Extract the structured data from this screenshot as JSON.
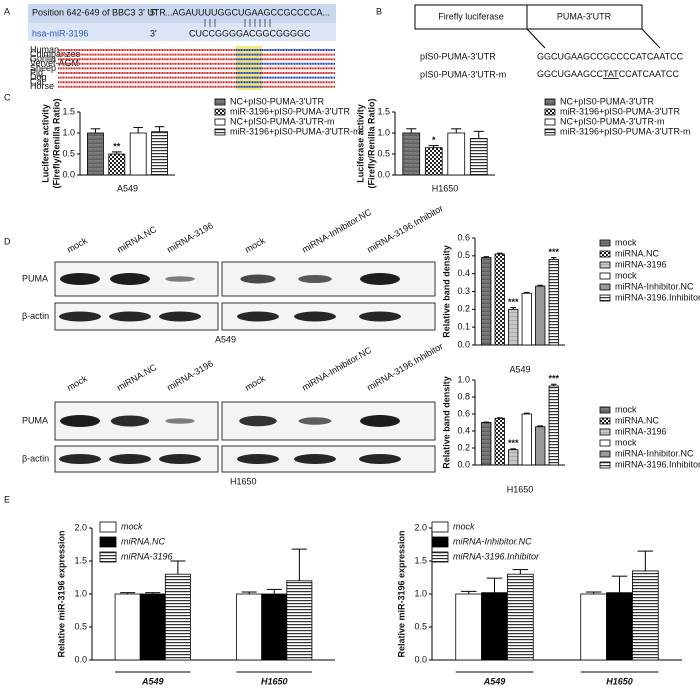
{
  "panel_labels": [
    "A",
    "B",
    "C",
    "D",
    "E"
  ],
  "panel_A": {
    "title": "Position 642-649 of BBC3 3' UTR",
    "utr_end": "5'",
    "utr_seq": "...AGAUUUUGGCUGAAGCCGCCCCA...",
    "mirna_name": "hsa-miR-3196",
    "mirna_end": "3'",
    "mirna_seq": "CUCCGGGGACGGCGGGGC",
    "species": [
      "Human",
      "Chimpanzee",
      "Gorilla",
      "Vervet-AGM",
      "Sheep",
      "Pig",
      "Dog",
      "Cat",
      "Horse"
    ]
  },
  "panel_B": {
    "box_left": "Firefly luciferase",
    "box_right": "PUMA-3'UTR",
    "constructs": [
      {
        "name": "pIS0-PUMA-3'UTR",
        "seq": "GGCUGAAGCCGCCCCATCAATCC"
      },
      {
        "name": "pIS0-PUMA-3'UTR-m",
        "seq_start": "GGCUGAAGCC",
        "seq_mut": "TAT",
        "seq_end": "CCATCAATCC"
      }
    ]
  },
  "panel_D_blots": [
    {
      "lanes": [
        "mock",
        "miRNA.NC",
        "miRNA-3196",
        "mock",
        "miRNA-Inhibitor.NC",
        "miRNA-3196.Inhibitor"
      ],
      "rows": [
        "PUMA",
        "β-actin"
      ],
      "cell_line": "A549"
    },
    {
      "lanes": [
        "mock",
        "miRNA.NC",
        "miRNA-3196",
        "mock",
        "miRNA-Inhibitor.NC",
        "miRNA-3196.Inhibitor"
      ],
      "rows": [
        "PUMA",
        "β-actin"
      ],
      "cell_line": "H1650"
    }
  ],
  "chart_data": [
    {
      "type": "bar",
      "ylabel": "Luciferase activity\n(Firefly/Renilla Ratio)",
      "xlabel": "A549",
      "ylim": [
        0,
        1.5
      ],
      "yticks": [
        {
          "value": 0,
          "label": "0.0"
        },
        0.5,
        {
          "value": 1,
          "label": "1.0"
        },
        1.5
      ],
      "series": [
        {
          "name": "NC+pIS0-PUMA-3'UTR",
          "fill": "gray",
          "values": [
            1.0
          ],
          "errors": [
            0.1
          ],
          "annotations": [
            null
          ]
        },
        {
          "name": "miR-3196+pIS0-PUMA-3'UTR",
          "fill": "checker",
          "values": [
            0.5
          ],
          "errors": [
            0.05
          ],
          "annotations": [
            "**"
          ]
        },
        {
          "name": "NC+pIS0-PUMA-3'UTR-m",
          "fill": "white",
          "values": [
            1.0
          ],
          "errors": [
            0.13
          ],
          "annotations": [
            null
          ]
        },
        {
          "name": "miR-3196+pIS0-PUMA-3'UTR-m",
          "fill": "hlines",
          "values": [
            1.03
          ],
          "errors": [
            0.12
          ],
          "annotations": [
            null
          ]
        }
      ]
    },
    {
      "type": "bar",
      "ylabel": "Luciferase activity\n(Firefly/Renilla Ratio)",
      "xlabel": "H1650",
      "ylim": [
        0,
        1.5
      ],
      "yticks": [
        {
          "value": 0,
          "label": "0.0"
        },
        0.5,
        {
          "value": 1,
          "label": "1.0"
        },
        1.5
      ],
      "series": [
        {
          "name": "NC+pIS0-PUMA-3'UTR",
          "fill": "gray",
          "values": [
            1.0
          ],
          "errors": [
            0.1
          ],
          "annotations": [
            null
          ]
        },
        {
          "name": "miR-3196+pIS0-PUMA-3'UTR",
          "fill": "checker",
          "values": [
            0.65
          ],
          "errors": [
            0.05
          ],
          "annotations": [
            "*"
          ]
        },
        {
          "name": "NC+pIS0-PUMA-3'UTR-m",
          "fill": "white",
          "values": [
            1.0
          ],
          "errors": [
            0.1
          ],
          "annotations": [
            null
          ]
        },
        {
          "name": "miR-3196+pIS0-PUMA-3'UTR-m",
          "fill": "hlines",
          "values": [
            0.87
          ],
          "errors": [
            0.17
          ],
          "annotations": [
            null
          ]
        }
      ]
    },
    {
      "type": "bar",
      "ylabel": "Relative band density",
      "title": "A549",
      "ylim": [
        0,
        0.6
      ],
      "yticks": [
        {
          "value": 0,
          "label": "0.0"
        },
        0.1,
        0.2,
        0.3,
        0.4,
        0.5,
        0.6
      ],
      "series": [
        {
          "name": "mock",
          "fill": "gray",
          "values": [
            0.49
          ],
          "errors": [
            0.005
          ],
          "annotations": [
            null
          ]
        },
        {
          "name": "miRNA.NC",
          "fill": "checker",
          "values": [
            0.51
          ],
          "errors": [
            0.005
          ],
          "annotations": [
            null
          ]
        },
        {
          "name": "miRNA-3196",
          "fill": "lgray",
          "values": [
            0.2
          ],
          "errors": [
            0.01
          ],
          "annotations": [
            "***"
          ]
        },
        {
          "name": "mock",
          "fill": "white",
          "values": [
            0.29
          ],
          "errors": [
            0.005
          ],
          "annotations": [
            null
          ]
        },
        {
          "name": "miRNA-Inhibitor.NC",
          "fill": "mgray",
          "values": [
            0.33
          ],
          "errors": [
            0.005
          ],
          "annotations": [
            null
          ]
        },
        {
          "name": "miRNA-3196.Inhibitor",
          "fill": "hlines",
          "values": [
            0.48
          ],
          "errors": [
            0.01
          ],
          "annotations": [
            "***"
          ]
        }
      ]
    },
    {
      "type": "bar",
      "ylabel": "Relative band density",
      "title": "H1650",
      "ylim": [
        0,
        1.0
      ],
      "yticks": [
        {
          "value": 0,
          "label": "0.0"
        },
        0.2,
        0.4,
        0.6,
        0.8,
        {
          "value": 1,
          "label": "1.0"
        }
      ],
      "series": [
        {
          "name": "mock",
          "fill": "gray",
          "values": [
            0.5
          ],
          "errors": [
            0.005
          ],
          "annotations": [
            null
          ]
        },
        {
          "name": "miRNA.NC",
          "fill": "checker",
          "values": [
            0.55
          ],
          "errors": [
            0.005
          ],
          "annotations": [
            null
          ]
        },
        {
          "name": "miRNA-3196",
          "fill": "lgray",
          "values": [
            0.18
          ],
          "errors": [
            0.01
          ],
          "annotations": [
            "***"
          ]
        },
        {
          "name": "mock",
          "fill": "white",
          "values": [
            0.6
          ],
          "errors": [
            0.01
          ],
          "annotations": [
            null
          ]
        },
        {
          "name": "miRNA-Inhibitor.NC",
          "fill": "mgray",
          "values": [
            0.45
          ],
          "errors": [
            0.01
          ],
          "annotations": [
            null
          ]
        },
        {
          "name": "miRNA-3196.Inhibitor",
          "fill": "hlines",
          "values": [
            0.93
          ],
          "errors": [
            0.02
          ],
          "annotations": [
            "***"
          ]
        }
      ]
    },
    {
      "type": "bar",
      "ylabel": "Relative miR-3196 expression",
      "categories": [
        "A549",
        "H1650"
      ],
      "ylim": [
        0,
        2.0
      ],
      "yticks": [
        {
          "value": 0,
          "label": "0.0"
        },
        0.5,
        {
          "value": 1,
          "label": "1.0"
        },
        1.5,
        {
          "value": 2,
          "label": "2.0"
        }
      ],
      "series": [
        {
          "name": "mock",
          "fill": "white",
          "values": [
            1.0,
            1.0
          ],
          "errors": [
            0.02,
            0.03
          ]
        },
        {
          "name": "miRNA.NC",
          "fill": "black",
          "values": [
            1.0,
            1.0
          ],
          "errors": [
            0.02,
            0.07
          ]
        },
        {
          "name": "miRNA-3196",
          "fill": "hlines",
          "values": [
            1.3,
            1.2
          ],
          "errors": [
            0.2,
            0.48
          ]
        }
      ]
    },
    {
      "type": "bar",
      "ylabel": "Relative miR-3196 expression",
      "categories": [
        "A549",
        "H1650"
      ],
      "ylim": [
        0,
        2.0
      ],
      "yticks": [
        {
          "value": 0,
          "label": "0.0"
        },
        0.5,
        {
          "value": 1,
          "label": "1.0"
        },
        1.5,
        {
          "value": 2,
          "label": "2.0"
        }
      ],
      "series": [
        {
          "name": "mock",
          "fill": "white",
          "values": [
            1.0,
            1.0
          ],
          "errors": [
            0.04,
            0.03
          ]
        },
        {
          "name": "miRNA-Inhibitor.NC",
          "fill": "black",
          "values": [
            1.02,
            1.02
          ],
          "errors": [
            0.22,
            0.25
          ]
        },
        {
          "name": "miRNA-3196.Inhibitor",
          "fill": "hlines",
          "values": [
            1.3,
            1.35
          ],
          "errors": [
            0.07,
            0.3
          ]
        }
      ]
    }
  ]
}
